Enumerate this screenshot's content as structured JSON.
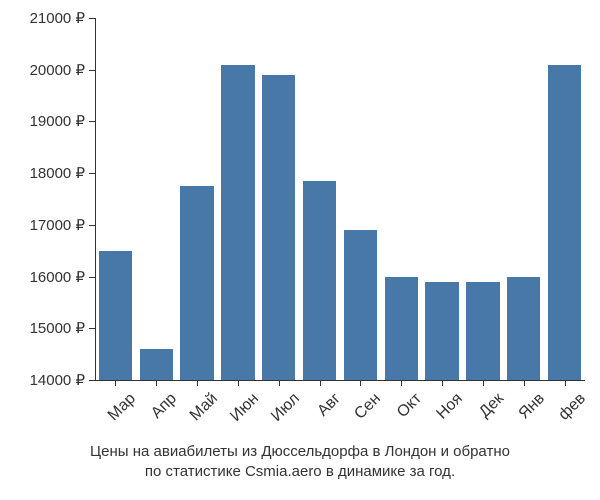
{
  "chart": {
    "type": "bar",
    "background_color": "#ffffff",
    "axis_color": "#333333",
    "text_color": "#333333",
    "bar_color": "#4878a8",
    "bar_width_ratio": 0.82,
    "ylim": [
      14000,
      21000
    ],
    "ytick_step": 1000,
    "y_unit_suffix": " ₽",
    "label_fontsize": 15,
    "xlabel_fontsize": 16,
    "xlabel_rotation_deg": -45,
    "categories": [
      "Мар",
      "Апр",
      "Май",
      "Июн",
      "Июл",
      "Авг",
      "Сен",
      "Окт",
      "Ноя",
      "Дек",
      "Янв",
      "фев"
    ],
    "values": [
      16500,
      14600,
      17750,
      20100,
      19900,
      17850,
      16900,
      16000,
      15900,
      15900,
      16000,
      20100
    ],
    "caption_line1": "Цены на авиабилеты из Дюссельдорфа в Лондон и обратно",
    "caption_line2": "по статистике Csmia.aero в динамике за год.",
    "caption_fontsize": 15
  }
}
